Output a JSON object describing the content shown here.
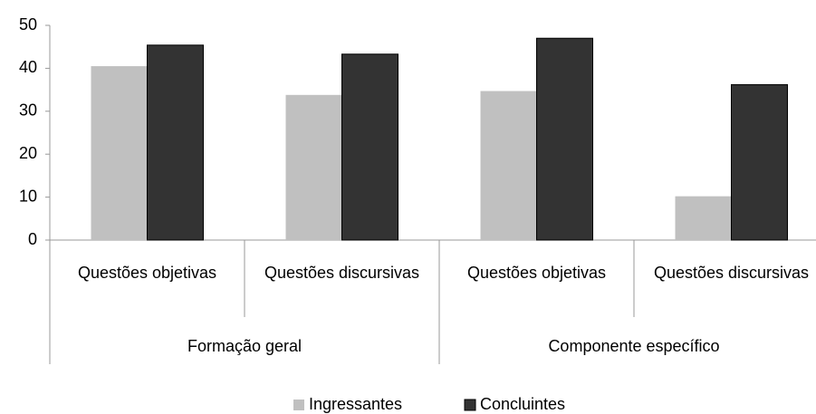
{
  "chart_data": {
    "type": "bar",
    "categories": [
      "Questões objetivas",
      "Questões discursivas",
      "Questões objetivas",
      "Questões discursivas"
    ],
    "groups": [
      {
        "name": "Formação geral",
        "size": 2
      },
      {
        "name": "Componente específico",
        "size": 2
      }
    ],
    "series": [
      {
        "name": "Ingressantes",
        "color": "#c0c0c0",
        "values": [
          40.5,
          33.8,
          34.7,
          10.2
        ]
      },
      {
        "name": "Concluintes",
        "color": "#333333",
        "values": [
          45.4,
          43.3,
          47.0,
          36.2
        ]
      }
    ],
    "ylim": [
      0,
      50
    ],
    "yticks": [
      0,
      10,
      20,
      30,
      40,
      50
    ],
    "grid": false,
    "legend": "bottom"
  }
}
